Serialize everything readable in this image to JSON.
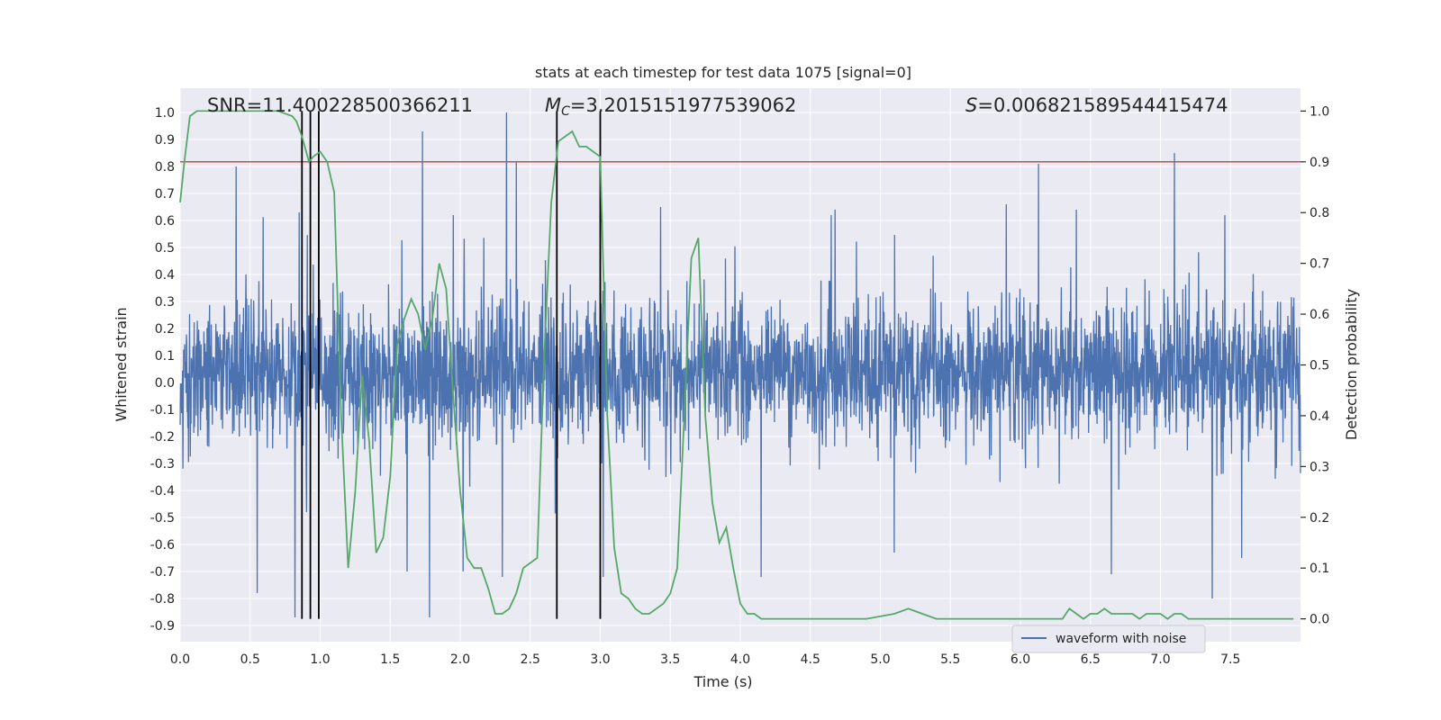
{
  "chart_data": {
    "type": "line",
    "title": "stats at each timestep for test data 1075 [signal=0]",
    "xlabel": "Time (s)",
    "ylabel": "Whitened strain",
    "y2label": "Detection probability",
    "xlim": [
      0.0,
      8.0
    ],
    "ylim": [
      -0.96,
      1.09
    ],
    "y2lim": [
      -0.045,
      1.045
    ],
    "xticks": [
      "0.0",
      "0.5",
      "1.0",
      "1.5",
      "2.0",
      "2.5",
      "3.0",
      "3.5",
      "4.0",
      "4.5",
      "5.0",
      "5.5",
      "6.0",
      "6.5",
      "7.0",
      "7.5"
    ],
    "yticks": [
      "-0.9",
      "-0.8",
      "-0.7",
      "-0.6",
      "-0.5",
      "-0.4",
      "-0.3",
      "-0.2",
      "-0.1",
      "0.0",
      "0.1",
      "0.2",
      "0.3",
      "0.4",
      "0.5",
      "0.6",
      "0.7",
      "0.8",
      "0.9",
      "1.0"
    ],
    "y2ticks": [
      "0.0",
      "0.1",
      "0.2",
      "0.3",
      "0.4",
      "0.5",
      "0.6",
      "0.7",
      "0.8",
      "0.9",
      "1.0"
    ],
    "grid": true,
    "legend_position": "lower-center",
    "stats": {
      "snr": "SNR=11.400228500366211",
      "mc_symbol": "M",
      "mc_sub": "C",
      "mc_value": "=3.2015151977539062",
      "s_symbol": "S",
      "s_value": "=0.006821589544415474"
    },
    "series": [
      {
        "name": "waveform with noise",
        "color": "#4c72b0",
        "axis": "left",
        "kind": "noise",
        "typical_range": [
          -0.35,
          0.43
        ],
        "peaks": [
          [
            0.4,
            0.8
          ],
          [
            1.73,
            0.93
          ],
          [
            2.3,
            0.83
          ],
          [
            2.33,
            1.0
          ],
          [
            2.4,
            0.82
          ],
          [
            3.0,
            0.82
          ],
          [
            3.43,
            0.65
          ],
          [
            4.65,
            0.62
          ],
          [
            6.13,
            0.81
          ],
          [
            6.4,
            0.64
          ],
          [
            7.1,
            0.85
          ],
          [
            7.46,
            0.62
          ],
          [
            0.85,
            0.63
          ],
          [
            1.95,
            0.62
          ],
          [
            5.9,
            0.66
          ]
        ],
        "troughs": [
          [
            0.55,
            -0.78
          ],
          [
            0.82,
            -0.87
          ],
          [
            1.78,
            -0.87
          ],
          [
            2.02,
            -0.7
          ],
          [
            2.3,
            -0.72
          ],
          [
            3.02,
            -0.72
          ],
          [
            4.15,
            -0.72
          ],
          [
            6.65,
            -0.71
          ],
          [
            7.37,
            -0.8
          ],
          [
            7.58,
            -0.65
          ],
          [
            1.62,
            -0.7
          ],
          [
            5.1,
            -0.63
          ]
        ]
      },
      {
        "name": "",
        "color": "#55a868",
        "axis": "right",
        "x": [
          0.0,
          0.03,
          0.07,
          0.12,
          0.2,
          0.3,
          0.4,
          0.5,
          0.6,
          0.7,
          0.8,
          0.83,
          0.87,
          0.92,
          0.95,
          1.0,
          1.05,
          1.1,
          1.15,
          1.2,
          1.25,
          1.3,
          1.35,
          1.4,
          1.45,
          1.5,
          1.55,
          1.6,
          1.65,
          1.7,
          1.75,
          1.8,
          1.85,
          1.9,
          1.95,
          2.0,
          2.05,
          2.1,
          2.15,
          2.2,
          2.25,
          2.3,
          2.35,
          2.4,
          2.45,
          2.5,
          2.55,
          2.6,
          2.65,
          2.7,
          2.75,
          2.8,
          2.85,
          2.9,
          2.95,
          3.0,
          3.05,
          3.1,
          3.15,
          3.2,
          3.25,
          3.3,
          3.35,
          3.4,
          3.45,
          3.5,
          3.55,
          3.6,
          3.65,
          3.7,
          3.75,
          3.8,
          3.85,
          3.9,
          3.95,
          4.0,
          4.05,
          4.1,
          4.15,
          4.2,
          4.3,
          4.5,
          4.7,
          4.9,
          5.1,
          5.2,
          5.3,
          5.4,
          5.5,
          5.7,
          5.9,
          6.1,
          6.3,
          6.35,
          6.4,
          6.45,
          6.5,
          6.55,
          6.6,
          6.65,
          6.7,
          6.75,
          6.8,
          6.85,
          6.9,
          6.95,
          7.0,
          7.05,
          7.1,
          7.15,
          7.2,
          7.3,
          7.4,
          7.6,
          7.8,
          7.95
        ],
        "y": [
          0.82,
          0.9,
          0.99,
          1.0,
          1.0,
          1.0,
          1.0,
          1.0,
          1.0,
          1.0,
          0.99,
          0.98,
          0.95,
          0.9,
          0.91,
          0.92,
          0.9,
          0.84,
          0.4,
          0.1,
          0.25,
          0.48,
          0.35,
          0.13,
          0.16,
          0.28,
          0.54,
          0.59,
          0.63,
          0.6,
          0.53,
          0.59,
          0.7,
          0.65,
          0.44,
          0.25,
          0.12,
          0.1,
          0.1,
          0.06,
          0.01,
          0.01,
          0.02,
          0.05,
          0.1,
          0.11,
          0.12,
          0.52,
          0.82,
          0.94,
          0.95,
          0.96,
          0.93,
          0.93,
          0.92,
          0.91,
          0.4,
          0.14,
          0.05,
          0.04,
          0.02,
          0.01,
          0.01,
          0.02,
          0.03,
          0.05,
          0.1,
          0.4,
          0.71,
          0.75,
          0.4,
          0.23,
          0.15,
          0.18,
          0.1,
          0.03,
          0.01,
          0.01,
          0.0,
          0.0,
          0.0,
          0.0,
          0.0,
          0.0,
          0.01,
          0.02,
          0.01,
          0.0,
          0.0,
          0.0,
          0.0,
          0.0,
          0.0,
          0.02,
          0.01,
          0.0,
          0.01,
          0.01,
          0.02,
          0.01,
          0.01,
          0.01,
          0.01,
          0.0,
          0.01,
          0.01,
          0.01,
          0.0,
          0.01,
          0.01,
          0.0,
          0.0,
          0.0,
          0.0,
          0.0,
          0.0
        ]
      },
      {
        "name": "",
        "color": "#c44e52",
        "axis": "right",
        "kind": "hline",
        "value": 0.9
      }
    ],
    "vlines": {
      "color": "#000000",
      "x": [
        0.87,
        0.93,
        0.99,
        2.69,
        3.0
      ],
      "y_range": [
        0.0,
        1.0
      ]
    }
  }
}
